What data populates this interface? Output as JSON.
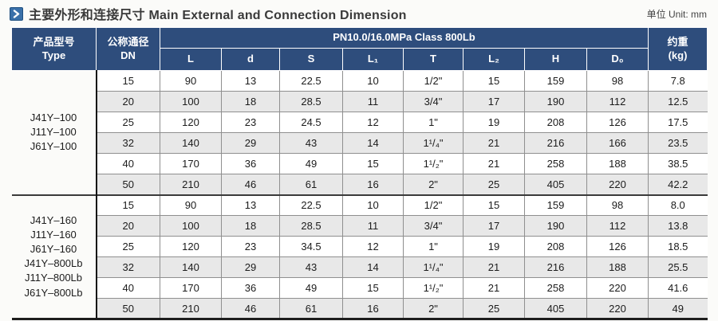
{
  "page": {
    "title": "主要外形和连接尺寸 Main External and Connection Dimension",
    "unit_label": "单位 Unit: mm"
  },
  "colors": {
    "header_blue": "#2e4d7c",
    "icon_blue": "#3a70a9",
    "alt_row_gray": "#e8e8e8",
    "page_background": "#fbfbf9"
  },
  "icons": {
    "title_icon": "chevron-right-icon"
  },
  "table": {
    "header": {
      "type_zh": "产品型号",
      "type_en": "Type",
      "dn_zh": "公称通径",
      "dn_en": "DN",
      "pn_label": "PN10.0/16.0MPa  Class 800Lb",
      "columns": [
        "L",
        "d",
        "S",
        "L₁",
        "T",
        "L₂",
        "H",
        "D₀"
      ],
      "weight_zh": "约重",
      "weight_en": "(kg)"
    },
    "groups": [
      {
        "type_lines": [
          "J41Y–100",
          "J11Y–100",
          "J61Y–100"
        ],
        "rows": [
          {
            "cells": [
              "15",
              "90",
              "13",
              "22.5",
              "10",
              "1/2\"",
              "15",
              "159",
              "98",
              "7.8"
            ]
          },
          {
            "cells": [
              "20",
              "100",
              "18",
              "28.5",
              "11",
              "3/4\"",
              "17",
              "190",
              "112",
              "12.5"
            ]
          },
          {
            "cells": [
              "25",
              "120",
              "23",
              "24.5",
              "12",
              "1\"",
              "19",
              "208",
              "126",
              "17.5"
            ]
          },
          {
            "cells": [
              "32",
              "140",
              "29",
              "43",
              "14",
              "1¹/₄\"",
              "21",
              "216",
              "166",
              "23.5"
            ]
          },
          {
            "cells": [
              "40",
              "170",
              "36",
              "49",
              "15",
              "1¹/₂\"",
              "21",
              "258",
              "188",
              "38.5"
            ]
          },
          {
            "cells": [
              "50",
              "210",
              "46",
              "61",
              "16",
              "2\"",
              "25",
              "405",
              "220",
              "42.2"
            ]
          }
        ]
      },
      {
        "type_lines": [
          "J41Y–160",
          "J11Y–160",
          "J61Y–160",
          "J41Y–800Lb",
          "J11Y–800Lb",
          "J61Y–800Lb"
        ],
        "rows": [
          {
            "cells": [
              "15",
              "90",
              "13",
              "22.5",
              "10",
              "1/2\"",
              "15",
              "159",
              "98",
              "8.0"
            ]
          },
          {
            "cells": [
              "20",
              "100",
              "18",
              "28.5",
              "11",
              "3/4\"",
              "17",
              "190",
              "112",
              "13.8"
            ]
          },
          {
            "cells": [
              "25",
              "120",
              "23",
              "34.5",
              "12",
              "1\"",
              "19",
              "208",
              "126",
              "18.5"
            ]
          },
          {
            "cells": [
              "32",
              "140",
              "29",
              "43",
              "14",
              "1¹/₄\"",
              "21",
              "216",
              "188",
              "25.5"
            ]
          },
          {
            "cells": [
              "40",
              "170",
              "36",
              "49",
              "15",
              "1¹/₂\"",
              "21",
              "258",
              "220",
              "41.6"
            ]
          },
          {
            "cells": [
              "50",
              "210",
              "46",
              "61",
              "16",
              "2\"",
              "25",
              "405",
              "220",
              "49"
            ]
          }
        ]
      }
    ]
  }
}
